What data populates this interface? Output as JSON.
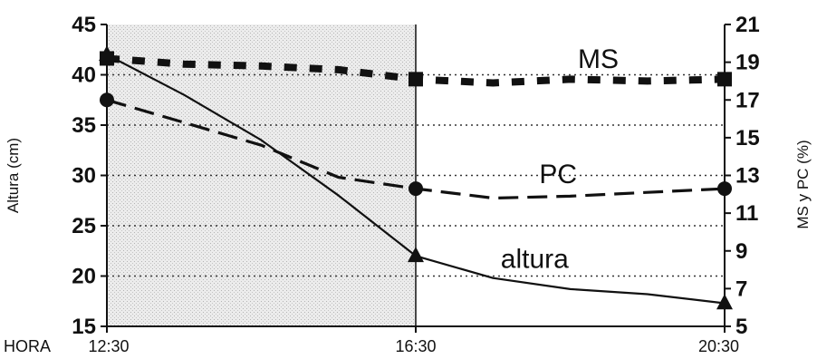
{
  "chart_data": {
    "type": "line",
    "xlabel": "HORA",
    "x_ticks": [
      "12:30",
      "16:30",
      "20:30"
    ],
    "x": [
      0,
      4,
      8
    ],
    "y_left": {
      "label": "Altura (cm)",
      "range": [
        15,
        45
      ],
      "ticks": [
        15,
        20,
        25,
        30,
        35,
        40,
        45
      ]
    },
    "y_right": {
      "label": "MS y PC (%)",
      "range": [
        5,
        21
      ],
      "ticks": [
        5,
        7,
        9,
        11,
        13,
        15,
        17,
        19,
        21
      ]
    },
    "grid": "dotted horizontal, solid vertical at 16:30",
    "series": [
      {
        "name": "altura",
        "axis": "left",
        "style": "solid",
        "marker": "triangle",
        "marker_x": [
          0,
          4,
          8
        ],
        "values": [
          42.0,
          22.0,
          17.3
        ],
        "curve": [
          [
            0,
            42.0
          ],
          [
            1,
            38.0
          ],
          [
            2,
            33.5
          ],
          [
            3,
            28.0
          ],
          [
            4,
            22.0
          ],
          [
            5,
            19.8
          ],
          [
            6,
            18.7
          ],
          [
            7,
            18.2
          ],
          [
            8,
            17.3
          ]
        ]
      },
      {
        "name": "PC",
        "axis": "right",
        "style": "dashed",
        "marker": "circle",
        "marker_x": [
          0,
          4,
          8
        ],
        "values": [
          17.0,
          12.3,
          12.3
        ],
        "curve": [
          [
            0,
            17.0
          ],
          [
            1,
            15.8
          ],
          [
            2,
            14.6
          ],
          [
            3,
            12.9
          ],
          [
            4,
            12.3
          ],
          [
            5,
            11.8
          ],
          [
            6,
            11.9
          ],
          [
            7,
            12.1
          ],
          [
            8,
            12.3
          ]
        ]
      },
      {
        "name": "MS",
        "axis": "right",
        "style": "heavy dashed",
        "marker": "square",
        "marker_x": [
          0,
          4,
          8
        ],
        "values": [
          19.2,
          18.1,
          18.1
        ],
        "curve": [
          [
            0,
            19.2
          ],
          [
            1,
            18.9
          ],
          [
            2,
            18.8
          ],
          [
            3,
            18.6
          ],
          [
            4,
            18.1
          ],
          [
            5,
            17.9
          ],
          [
            6,
            18.1
          ],
          [
            7,
            18.0
          ],
          [
            8,
            18.1
          ]
        ]
      }
    ]
  }
}
